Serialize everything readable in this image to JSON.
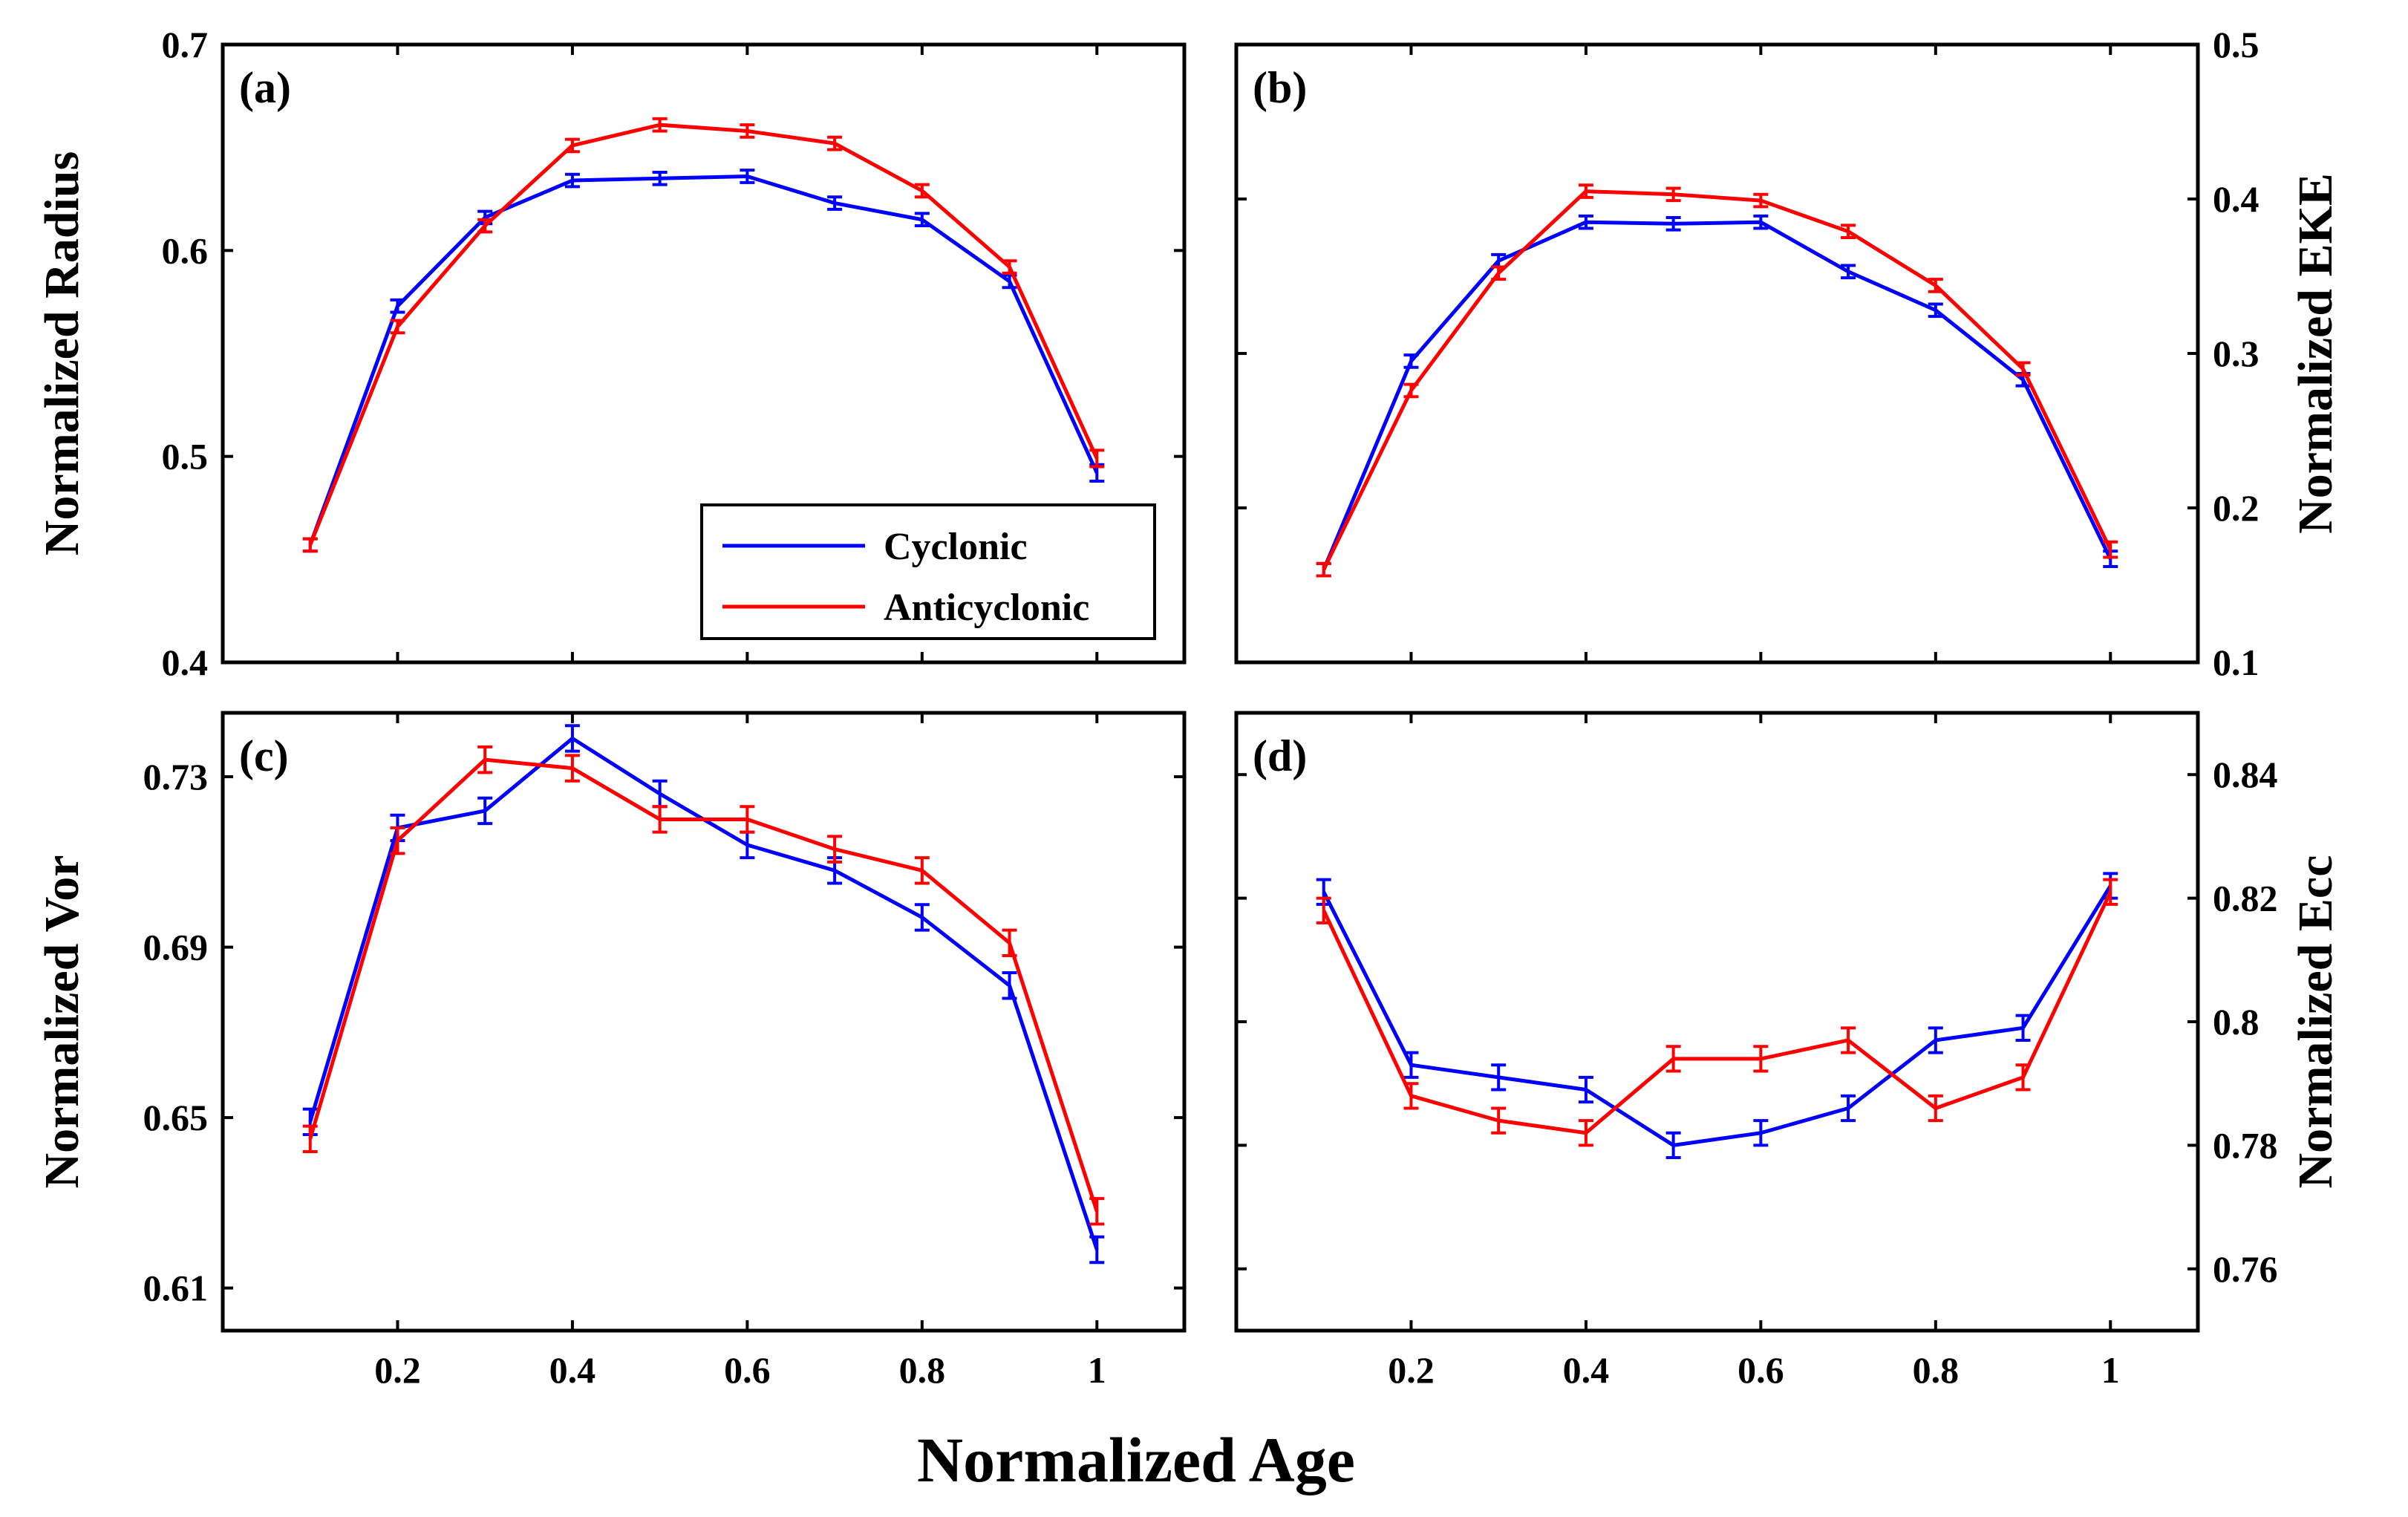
{
  "colors": {
    "cyclonic": "#0000ff",
    "anticyclonic": "#ff0000",
    "axis": "#000000"
  },
  "figure": {
    "xlabel": "Normalized Age"
  },
  "legend": {
    "items": [
      "Cyclonic",
      "Anticyclonic"
    ]
  },
  "chart_data": [
    {
      "type": "line",
      "panel": "(a)",
      "ylabel": "Normalized Radius",
      "ylabel_side": "left",
      "x": [
        0.1,
        0.2,
        0.3,
        0.4,
        0.5,
        0.6,
        0.7,
        0.8,
        0.9,
        1.0
      ],
      "xticks": [
        0.2,
        0.4,
        0.6,
        0.8,
        1
      ],
      "xticklabels": [
        "",
        "",
        "",
        "",
        ""
      ],
      "xlim": [
        0,
        1.1
      ],
      "ylim": [
        0.4,
        0.7
      ],
      "yticks": [
        0.4,
        0.5,
        0.6,
        0.7
      ],
      "yticklabels": [
        "0.4",
        "0.5",
        "0.6",
        "0.7"
      ],
      "series": [
        {
          "name": "Cyclonic",
          "values": [
            0.457,
            0.573,
            0.616,
            0.634,
            0.635,
            0.636,
            0.623,
            0.615,
            0.585,
            0.492
          ],
          "err": [
            0.003,
            0.003,
            0.003,
            0.003,
            0.003,
            0.003,
            0.003,
            0.003,
            0.003,
            0.004
          ]
        },
        {
          "name": "Anticyclonic",
          "values": [
            0.457,
            0.563,
            0.612,
            0.651,
            0.661,
            0.658,
            0.652,
            0.629,
            0.592,
            0.499
          ],
          "err": [
            0.003,
            0.003,
            0.003,
            0.003,
            0.003,
            0.003,
            0.003,
            0.003,
            0.003,
            0.004
          ]
        }
      ],
      "legend": "inside lower-right"
    },
    {
      "type": "line",
      "panel": "(b)",
      "ylabel": "Normalized EKE",
      "ylabel_side": "right",
      "x": [
        0.1,
        0.2,
        0.3,
        0.4,
        0.5,
        0.6,
        0.7,
        0.8,
        0.9,
        1.0
      ],
      "xticks": [
        0.2,
        0.4,
        0.6,
        0.8,
        1
      ],
      "xticklabels": [
        "",
        "",
        "",
        "",
        ""
      ],
      "xlim": [
        0,
        1.1
      ],
      "ylim": [
        0.1,
        0.5
      ],
      "yticks": [
        0.1,
        0.2,
        0.3,
        0.4,
        0.5
      ],
      "yticklabels": [
        "0.1",
        "0.2",
        "0.3",
        "0.4",
        "0.5"
      ],
      "series": [
        {
          "name": "Cyclonic",
          "values": [
            0.16,
            0.295,
            0.36,
            0.385,
            0.384,
            0.385,
            0.353,
            0.328,
            0.283,
            0.167
          ],
          "err": [
            0.004,
            0.004,
            0.004,
            0.004,
            0.004,
            0.004,
            0.004,
            0.004,
            0.004,
            0.005
          ]
        },
        {
          "name": "Anticyclonic",
          "values": [
            0.16,
            0.276,
            0.352,
            0.405,
            0.403,
            0.399,
            0.379,
            0.344,
            0.29,
            0.173
          ],
          "err": [
            0.004,
            0.004,
            0.004,
            0.004,
            0.004,
            0.004,
            0.004,
            0.004,
            0.004,
            0.005
          ]
        }
      ]
    },
    {
      "type": "line",
      "panel": "(c)",
      "ylabel": "Normalized Vor",
      "ylabel_side": "left",
      "x": [
        0.1,
        0.2,
        0.3,
        0.4,
        0.5,
        0.6,
        0.7,
        0.8,
        0.9,
        1.0
      ],
      "xticks": [
        0.2,
        0.4,
        0.6,
        0.8,
        1
      ],
      "xticklabels": [
        "0.2",
        "0.4",
        "0.6",
        "0.8",
        "1"
      ],
      "xlim": [
        0,
        1.1
      ],
      "ylim": [
        0.6,
        0.745
      ],
      "yticks": [
        0.61,
        0.65,
        0.69,
        0.73
      ],
      "yticklabels": [
        "0.61",
        "0.65",
        "0.69",
        "0.73"
      ],
      "series": [
        {
          "name": "Cyclonic",
          "values": [
            0.649,
            0.718,
            0.722,
            0.739,
            0.726,
            0.714,
            0.708,
            0.697,
            0.681,
            0.619
          ],
          "err": [
            0.003,
            0.003,
            0.003,
            0.003,
            0.003,
            0.003,
            0.003,
            0.003,
            0.003,
            0.003
          ]
        },
        {
          "name": "Anticyclonic",
          "values": [
            0.645,
            0.715,
            0.734,
            0.732,
            0.72,
            0.72,
            0.713,
            0.708,
            0.691,
            0.628
          ],
          "err": [
            0.003,
            0.003,
            0.003,
            0.003,
            0.003,
            0.003,
            0.003,
            0.003,
            0.003,
            0.003
          ]
        }
      ]
    },
    {
      "type": "line",
      "panel": "(d)",
      "ylabel": "Normalized Ecc",
      "ylabel_side": "right",
      "x": [
        0.1,
        0.2,
        0.3,
        0.4,
        0.5,
        0.6,
        0.7,
        0.8,
        0.9,
        1.0
      ],
      "xticks": [
        0.2,
        0.4,
        0.6,
        0.8,
        1
      ],
      "xticklabels": [
        "0.2",
        "0.4",
        "0.6",
        "0.8",
        "1"
      ],
      "xlim": [
        0,
        1.1
      ],
      "ylim": [
        0.75,
        0.85
      ],
      "yticks": [
        0.76,
        0.78,
        0.8,
        0.82,
        0.84
      ],
      "yticklabels": [
        "0.76",
        "0.78",
        "0.8",
        "0.82",
        "0.84"
      ],
      "series": [
        {
          "name": "Cyclonic",
          "values": [
            0.821,
            0.793,
            0.791,
            0.789,
            0.78,
            0.782,
            0.786,
            0.797,
            0.799,
            0.822
          ],
          "err": [
            0.002,
            0.002,
            0.002,
            0.002,
            0.002,
            0.002,
            0.002,
            0.002,
            0.002,
            0.002
          ]
        },
        {
          "name": "Anticyclonic",
          "values": [
            0.818,
            0.788,
            0.784,
            0.782,
            0.794,
            0.794,
            0.797,
            0.786,
            0.791,
            0.821
          ],
          "err": [
            0.002,
            0.002,
            0.002,
            0.002,
            0.002,
            0.002,
            0.002,
            0.002,
            0.002,
            0.002
          ]
        }
      ]
    }
  ]
}
